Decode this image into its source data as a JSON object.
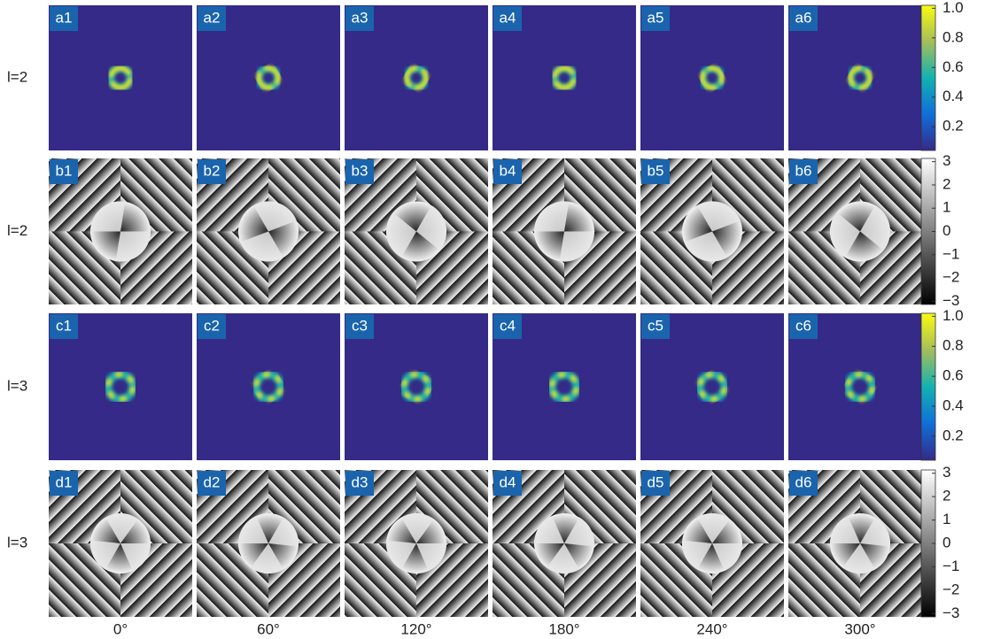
{
  "rows": [
    {
      "label": "l=2",
      "panels": [
        "a1",
        "a2",
        "a3",
        "a4",
        "a5",
        "a6"
      ],
      "kind": "intensity",
      "charge": 2
    },
    {
      "label": "l=2",
      "panels": [
        "b1",
        "b2",
        "b3",
        "b4",
        "b5",
        "b6"
      ],
      "kind": "phase",
      "charge": 2
    },
    {
      "label": "l=3",
      "panels": [
        "c1",
        "c2",
        "c3",
        "c4",
        "c5",
        "c6"
      ],
      "kind": "intensity",
      "charge": 3
    },
    {
      "label": "l=3",
      "panels": [
        "d1",
        "d2",
        "d3",
        "d4",
        "d5",
        "d6"
      ],
      "kind": "phase",
      "charge": 3
    }
  ],
  "columns": [
    "0°",
    "60°",
    "120°",
    "180°",
    "240°",
    "300°"
  ],
  "colorbars": {
    "intensity": {
      "lim": [
        0.04,
        1.02
      ],
      "ticks": [
        {
          "value": 1,
          "label": "1.0"
        },
        {
          "value": 0.8,
          "label": "0.8"
        },
        {
          "value": 0.6,
          "label": "0.6"
        },
        {
          "value": 0.4,
          "label": "0.4"
        },
        {
          "value": 0.2,
          "label": "0.2"
        }
      ]
    },
    "phase": {
      "lim": [
        -3.14,
        3.14
      ],
      "ticks": [
        3,
        2,
        1,
        0,
        {
          "value": -1,
          "label": "−1"
        },
        {
          "value": -2,
          "label": "−2"
        },
        {
          "value": -3,
          "label": "−3"
        }
      ]
    }
  }
}
